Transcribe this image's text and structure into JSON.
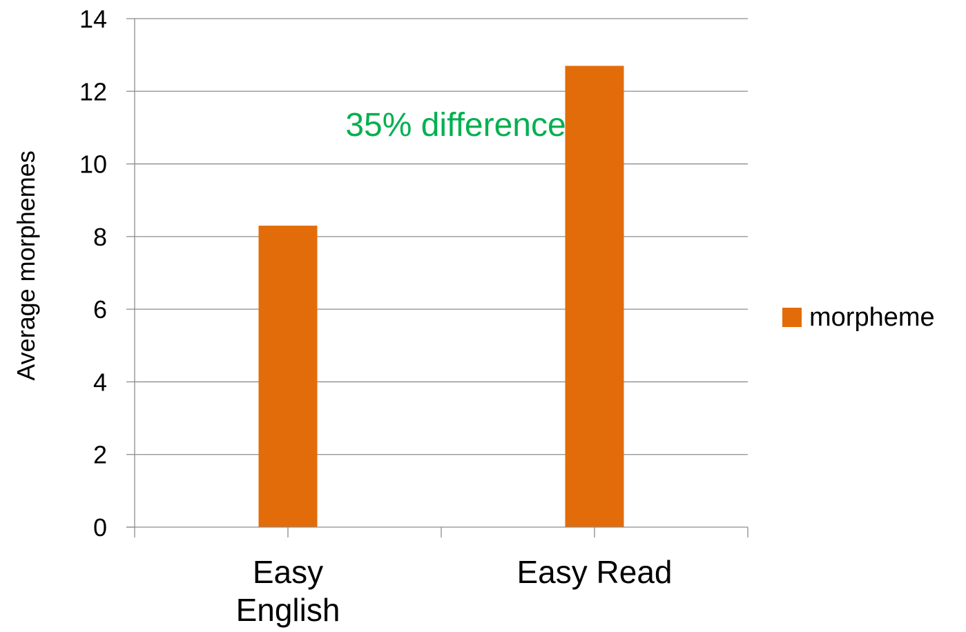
{
  "chart_data": {
    "type": "bar",
    "categories": [
      [
        "Easy",
        "English"
      ],
      [
        "Easy Read"
      ]
    ],
    "series": [
      {
        "name": "morpheme",
        "values": [
          8.3,
          12.7
        ],
        "color": "#E36C0A"
      }
    ],
    "xlabel": "",
    "ylabel": "Average morphemes",
    "ylim": [
      0,
      14
    ],
    "yticks": [
      0,
      2,
      4,
      6,
      8,
      10,
      12,
      14
    ],
    "grid": true,
    "legend_position": "right",
    "annotations": [
      {
        "text": "35% difference",
        "color": "#00B050"
      }
    ]
  }
}
